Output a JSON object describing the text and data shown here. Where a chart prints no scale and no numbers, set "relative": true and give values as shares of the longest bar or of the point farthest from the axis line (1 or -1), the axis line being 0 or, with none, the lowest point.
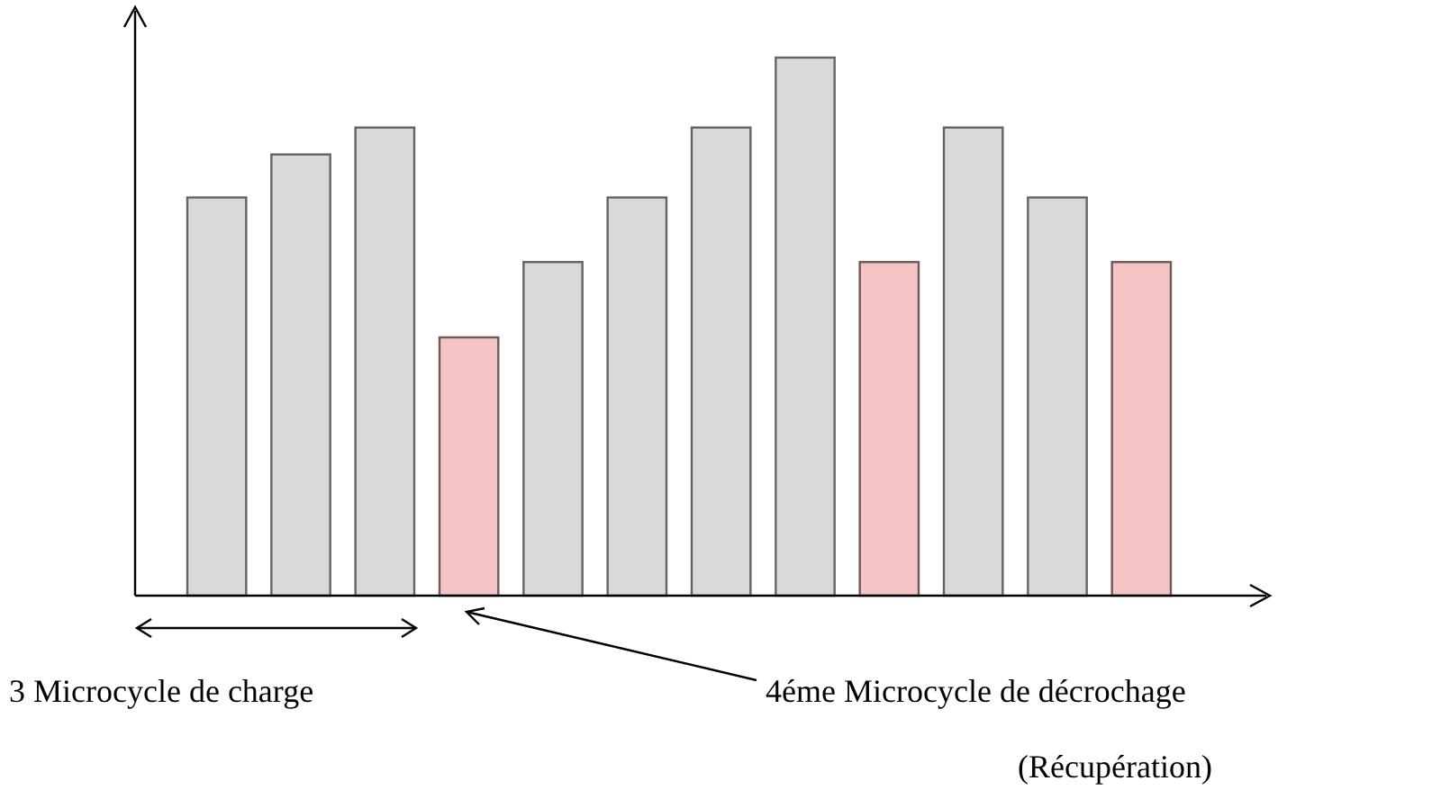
{
  "chart_data": {
    "type": "bar",
    "relative": true,
    "categories": [
      null,
      null,
      null,
      null,
      null,
      null,
      null,
      null,
      null,
      null,
      null,
      null
    ],
    "values": [
      0.74,
      0.82,
      0.87,
      0.48,
      0.62,
      0.74,
      0.87,
      1,
      0.62,
      0.87,
      0.74,
      0.62
    ],
    "colors": [
      "#d9d9d9",
      "#d9d9d9",
      "#d9d9d9",
      "#f4c4c4",
      "#d9d9d9",
      "#d9d9d9",
      "#d9d9d9",
      "#d9d9d9",
      "#f4c4c4",
      "#d9d9d9",
      "#d9d9d9",
      "#f4c4c4"
    ],
    "annotations": [
      "3 Microcycle de charge",
      "4éme  Microcycle de décrochage",
      "(Récupération)"
    ]
  }
}
